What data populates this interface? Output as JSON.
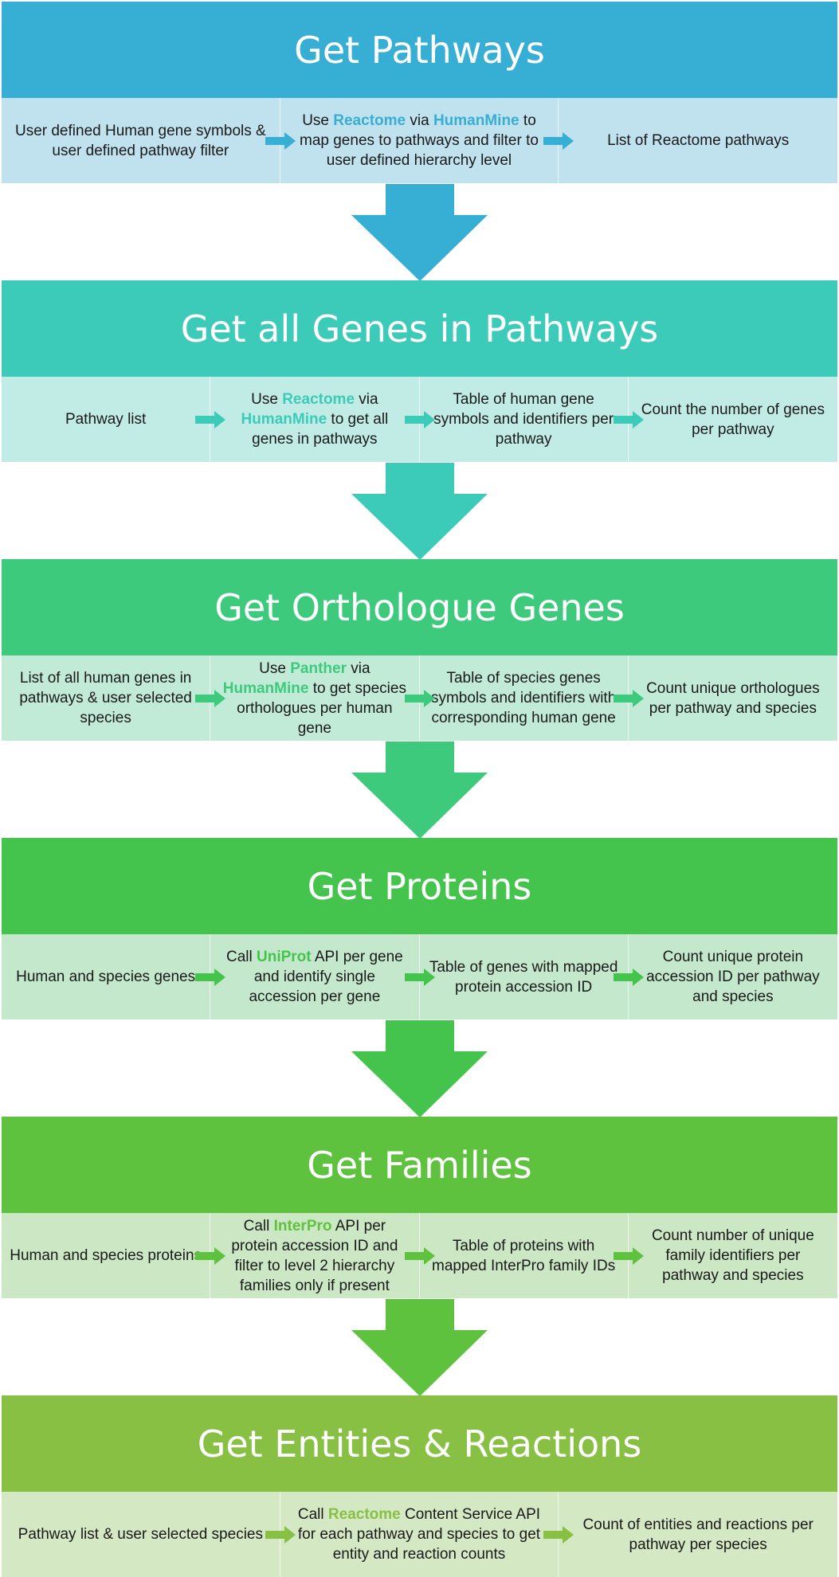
{
  "sections": [
    {
      "title": "Get Pathways",
      "color": "#37aed3",
      "light": "#c0e1ee",
      "arrow": "#37aed3",
      "hl": "#37aed3",
      "steps": [
        {
          "parts": [
            {
              "t": "User defined Human gene symbols & user defined pathway filter"
            }
          ]
        },
        {
          "parts": [
            {
              "t": "Use "
            },
            {
              "t": "Reactome",
              "hl": true
            },
            {
              "t": " via "
            },
            {
              "t": "HumanMine",
              "hl": true
            },
            {
              "t": " to map genes to pathways and filter to user defined hierarchy level"
            }
          ]
        },
        {
          "parts": [
            {
              "t": "List of Reactome pathways"
            }
          ]
        }
      ]
    },
    {
      "title": "Get all Genes in Pathways",
      "color": "#3ccbb8",
      "light": "#c1ebe5",
      "arrow": "#3ccbb8",
      "hl": "#3ccbb8",
      "steps": [
        {
          "parts": [
            {
              "t": "Pathway list"
            }
          ]
        },
        {
          "parts": [
            {
              "t": "Use "
            },
            {
              "t": "Reactome",
              "hl": true
            },
            {
              "t": " via "
            },
            {
              "t": "HumanMine",
              "hl": true
            },
            {
              "t": " to get all genes in pathways"
            }
          ]
        },
        {
          "parts": [
            {
              "t": "Table of human gene symbols and identifiers per pathway"
            }
          ]
        },
        {
          "parts": [
            {
              "t": "Count the number of genes per pathway"
            }
          ]
        }
      ]
    },
    {
      "title": "Get Orthologue Genes",
      "color": "#3dca7c",
      "light": "#c2ebd7",
      "arrow": "#3dca7c",
      "hl": "#3dca7c",
      "steps": [
        {
          "parts": [
            {
              "t": "List of all human genes in pathways & user selected species"
            }
          ]
        },
        {
          "parts": [
            {
              "t": "Use "
            },
            {
              "t": "Panther",
              "hl": true
            },
            {
              "t": " via "
            },
            {
              "t": "HumanMine",
              "hl": true
            },
            {
              "t": " to get species orthologues per human gene"
            }
          ]
        },
        {
          "parts": [
            {
              "t": "Table of species genes symbols and identifiers with corresponding human gene"
            }
          ]
        },
        {
          "parts": [
            {
              "t": "Count unique orthologues per pathway and species"
            }
          ]
        }
      ]
    },
    {
      "title": "Get Proteins",
      "color": "#45c44d",
      "light": "#c4e8cc",
      "arrow": "#45c44d",
      "hl": "#45c44d",
      "steps": [
        {
          "parts": [
            {
              "t": "Human and species genes"
            }
          ]
        },
        {
          "parts": [
            {
              "t": "Call "
            },
            {
              "t": "UniProt",
              "hl": true
            },
            {
              "t": " API per gene and identify single accession per gene"
            }
          ]
        },
        {
          "parts": [
            {
              "t": "Table of genes with mapped protein accession ID"
            }
          ]
        },
        {
          "parts": [
            {
              "t": "Count unique protein accession ID per pathway and species"
            }
          ]
        }
      ]
    },
    {
      "title": "Get Families",
      "color": "#5fc23f",
      "light": "#cbe7c4",
      "arrow": "#5fc23f",
      "hl": "#5fc23f",
      "steps": [
        {
          "parts": [
            {
              "t": "Human and species proteins"
            }
          ]
        },
        {
          "parts": [
            {
              "t": "Call "
            },
            {
              "t": "InterPro",
              "hl": true
            },
            {
              "t": " API per protein accession ID and filter to level 2 hierarchy families only if present"
            }
          ]
        },
        {
          "parts": [
            {
              "t": "Table of proteins with mapped InterPro family IDs"
            }
          ]
        },
        {
          "parts": [
            {
              "t": "Count number of unique family identifiers per pathway and species"
            }
          ]
        }
      ]
    },
    {
      "title": "Get Entities & Reactions",
      "color": "#88c044",
      "light": "#d4e8c4",
      "arrow": "#5fc23f",
      "hl": "#88c044",
      "steps": [
        {
          "parts": [
            {
              "t": "Pathway list & user selected species"
            }
          ]
        },
        {
          "parts": [
            {
              "t": "Call "
            },
            {
              "t": "Reactome",
              "hl": true
            },
            {
              "t": " Content Service API for each pathway and species to get entity and reaction counts"
            }
          ]
        },
        {
          "parts": [
            {
              "t": "Count of entities and reactions per pathway per species"
            }
          ]
        }
      ]
    }
  ]
}
